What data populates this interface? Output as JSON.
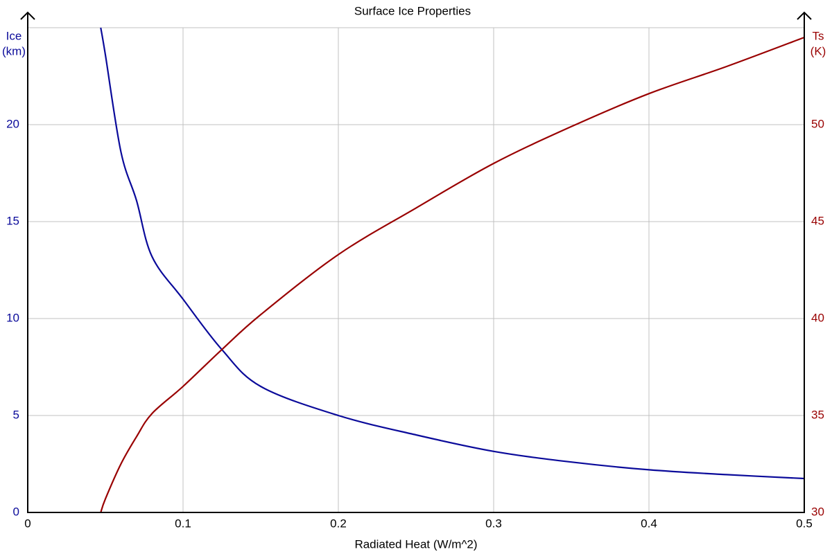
{
  "chart_data": {
    "type": "line",
    "title": "Surface Ice Properties",
    "x_label": "Radiated Heat (W/m^2)",
    "y_label": [
      "Ice",
      "(km)"
    ],
    "y2_label": [
      "Ts",
      "(K)"
    ],
    "x": [
      0.047,
      0.05,
      0.06,
      0.07,
      0.08,
      0.1,
      0.125,
      0.15,
      0.2,
      0.25,
      0.3,
      0.35,
      0.4,
      0.45,
      0.5
    ],
    "series": [
      {
        "name": "Ice",
        "color": "#0a0a9a",
        "values": [
          25,
          23.6,
          18.6,
          16.1,
          13.2,
          11.0,
          8.4,
          6.5,
          5.0,
          4.0,
          3.15,
          2.6,
          2.2,
          1.95,
          1.75
        ]
      },
      {
        "name": "Ts",
        "color": "#990000",
        "axis": "y2",
        "values": [
          30,
          30.7,
          32.5,
          33.9,
          35.1,
          36.5,
          38.4,
          40.2,
          43.3,
          45.7,
          48.0,
          49.9,
          51.6,
          53.0,
          54.5
        ]
      }
    ],
    "xlim": [
      0,
      0.5
    ],
    "xticks": [
      0,
      0.1,
      0.2,
      0.3,
      0.4,
      0.5
    ],
    "ylim": [
      0,
      25
    ],
    "yticks": [
      0,
      5,
      10,
      15,
      20
    ],
    "y2lim": [
      30,
      55
    ],
    "y2ticks": [
      30,
      35,
      40,
      45,
      50
    ],
    "grid": true
  }
}
